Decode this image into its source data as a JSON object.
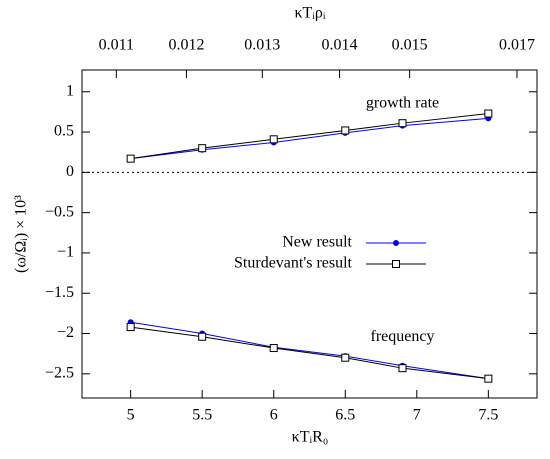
{
  "chart_data": {
    "type": "line",
    "x_label": "κTᵢR₀",
    "x2_label": "κTᵢρᵢ",
    "y_label": "(ω/Ωᵢ) × 10³",
    "x": [
      5,
      5.5,
      6,
      6.5,
      6.9,
      7.5
    ],
    "xlim": [
      4.66,
      7.84
    ],
    "xticks": [
      5,
      5.5,
      6,
      6.5,
      7,
      7.5
    ],
    "x2ticks": [
      {
        "value": 4.9,
        "label": "0.011"
      },
      {
        "value": 5.39,
        "label": "0.012"
      },
      {
        "value": 5.92,
        "label": "0.013"
      },
      {
        "value": 6.46,
        "label": "0.014"
      },
      {
        "value": 6.95,
        "label": "0.015"
      },
      {
        "value": 7.7,
        "label": "0.017"
      }
    ],
    "ylim": [
      -2.8,
      1.27
    ],
    "yticks": [
      {
        "value": -2.5,
        "label": "−2.5"
      },
      {
        "value": -2,
        "label": "−2"
      },
      {
        "value": -1.5,
        "label": "−1.5"
      },
      {
        "value": -1,
        "label": "−1"
      },
      {
        "value": -0.5,
        "label": "−0.5"
      },
      0,
      0.5,
      1
    ],
    "zero_line": true,
    "annotations": [
      {
        "text": "growth rate",
        "x": 6.9,
        "y": 0.85
      },
      {
        "text": "frequency",
        "x": 6.9,
        "y": -2.05
      }
    ],
    "series": [
      {
        "name": "New result",
        "color": "#0000ff",
        "marker": "circle",
        "growth_rate": [
          0.17,
          0.28,
          0.37,
          0.49,
          0.58,
          0.67
        ],
        "frequency": [
          -1.86,
          -2.0,
          -2.17,
          -2.28,
          -2.4,
          -2.56
        ]
      },
      {
        "name": "Sturdevant's result",
        "color": "#000000",
        "marker": "square",
        "growth_rate": [
          0.17,
          0.3,
          0.41,
          0.52,
          0.61,
          0.73
        ],
        "frequency": [
          -1.92,
          -2.04,
          -2.18,
          -2.3,
          -2.43,
          -2.56
        ]
      }
    ]
  }
}
